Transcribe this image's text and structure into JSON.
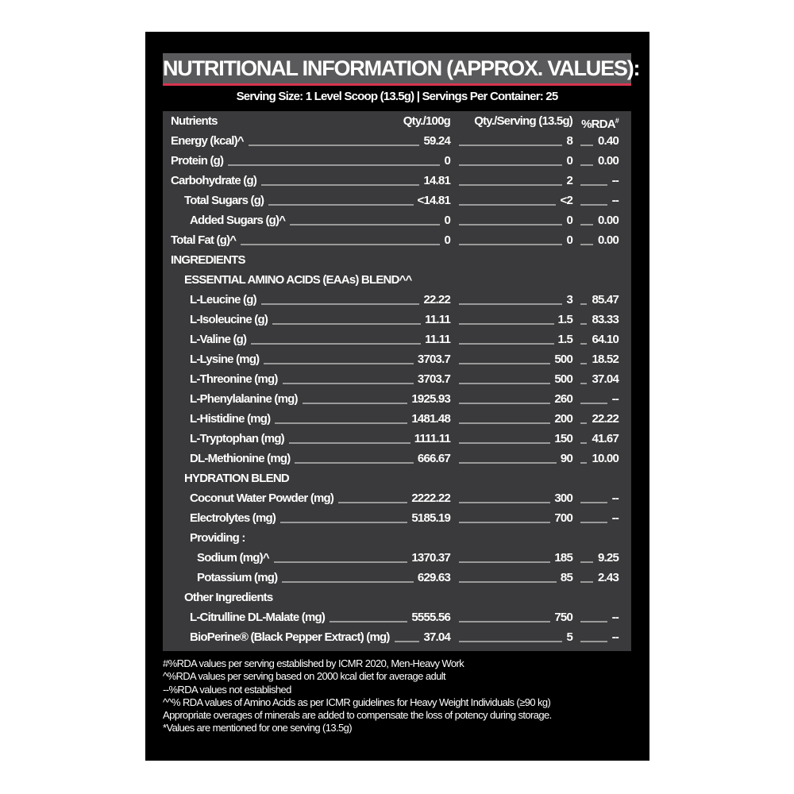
{
  "title": "NUTRITIONAL INFORMATION (APPROX. VALUES):",
  "serving_line": "Serving Size: 1 Level Scoop (13.5g)  |  Servings Per Container: 25",
  "colors": {
    "background": "#000000",
    "panel": "#3a3a3c",
    "title_bar": "#5a5a5c",
    "accent": "#d8344f"
  },
  "header": {
    "label": "Nutrients",
    "q100": "Qty./100g",
    "qserv": "Qty./Serving (13.5g)",
    "rda": "%RDA",
    "rda_mark": "#"
  },
  "rows": [
    {
      "label": "Energy (kcal)^",
      "level": 0,
      "q100": "59.24",
      "qserv": "8",
      "rda": "0.40"
    },
    {
      "label": "Protein (g)",
      "level": 0,
      "q100": "0",
      "qserv": "0",
      "rda": "0.00"
    },
    {
      "label": "Carbohydrate (g)",
      "level": 0,
      "q100": "14.81",
      "qserv": "2",
      "rda": "--"
    },
    {
      "label": "Total Sugars (g)",
      "level": 1,
      "q100": "<14.81",
      "qserv": "<2",
      "rda": "--"
    },
    {
      "label": "Added Sugars (g)^",
      "level": 2,
      "q100": "0",
      "qserv": "0",
      "rda": "0.00"
    },
    {
      "label": "Total Fat (g)^",
      "level": 0,
      "q100": "0",
      "qserv": "0",
      "rda": "0.00"
    },
    {
      "label": "INGREDIENTS",
      "level": 0
    },
    {
      "label": "ESSENTIAL AMINO ACIDS (EAAs) BLEND^^",
      "level": 1
    },
    {
      "label": "L-Leucine (g)",
      "level": 2,
      "q100": "22.22",
      "qserv": "3",
      "rda": "85.47"
    },
    {
      "label": "L-Isoleucine (g)",
      "level": 2,
      "q100": "11.11",
      "qserv": "1.5",
      "rda": "83.33"
    },
    {
      "label": "L-Valine (g)",
      "level": 2,
      "q100": "11.11",
      "qserv": "1.5",
      "rda": "64.10"
    },
    {
      "label": "L-Lysine (mg)",
      "level": 2,
      "q100": "3703.7",
      "qserv": "500",
      "rda": "18.52"
    },
    {
      "label": "L-Threonine (mg)",
      "level": 2,
      "q100": "3703.7",
      "qserv": "500",
      "rda": "37.04"
    },
    {
      "label": "L-Phenylalanine (mg)",
      "level": 2,
      "q100": "1925.93",
      "qserv": "260",
      "rda": "--"
    },
    {
      "label": "L-Histidine (mg)",
      "level": 2,
      "q100": "1481.48",
      "qserv": "200",
      "rda": "22.22"
    },
    {
      "label": "L-Tryptophan (mg)",
      "level": 2,
      "q100": "1111.11",
      "qserv": "150",
      "rda": "41.67"
    },
    {
      "label": "DL-Methionine (mg)",
      "level": 2,
      "q100": "666.67",
      "qserv": "90",
      "rda": "10.00"
    },
    {
      "label": "HYDRATION BLEND",
      "level": 1
    },
    {
      "label": "Coconut Water Powder (mg)",
      "level": 2,
      "q100": "2222.22",
      "qserv": "300",
      "rda": "--"
    },
    {
      "label": "Electrolytes (mg)",
      "level": 2,
      "q100": "5185.19",
      "qserv": "700",
      "rda": "--"
    },
    {
      "label": "Providing :",
      "level": 2
    },
    {
      "label": "Sodium (mg)^",
      "level": 3,
      "q100": "1370.37",
      "qserv": "185",
      "rda": "9.25"
    },
    {
      "label": "Potassium (mg)",
      "level": 3,
      "q100": "629.63",
      "qserv": "85",
      "rda": "2.43"
    },
    {
      "label": "Other Ingredients",
      "level": 1
    },
    {
      "label": "L-Citrulline DL-Malate (mg)",
      "level": 2,
      "q100": "5555.56",
      "qserv": "750",
      "rda": "--"
    },
    {
      "label": "BioPerine® (Black Pepper Extract) (mg)",
      "level": 2,
      "q100": "37.04",
      "qserv": "5",
      "rda": "--"
    }
  ],
  "footnotes": [
    "#%RDA values per serving established by ICMR 2020, Men-Heavy Work",
    "^%RDA values per serving based on 2000 kcal diet for average adult",
    "--%RDA values not established",
    "^^% RDA values of Amino Acids as per ICMR guidelines for Heavy Weight Individuals (≥90 kg)",
    "Appropriate overages of minerals are added to compensate the loss of potency during storage.",
    "*Values are mentioned for one serving (13.5g)"
  ]
}
